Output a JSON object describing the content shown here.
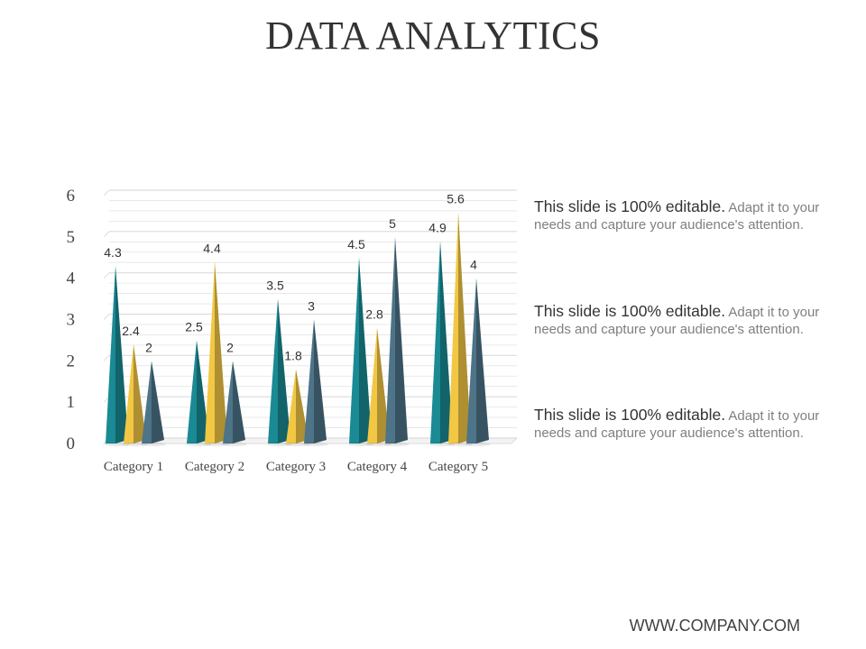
{
  "title": "DATA ANALYTICS",
  "notes": [
    {
      "lead": "This slide is 100% editable.",
      "body": " Adapt it to your needs and capture your audience's attention."
    },
    {
      "lead": "This slide is 100% editable.",
      "body": " Adapt it to your needs and capture your audience's attention."
    },
    {
      "lead": "This slide is 100% editable.",
      "body": " Adapt it to your needs and capture your audience's attention."
    }
  ],
  "footer": "WWW.COMPANY.COM",
  "colors": {
    "series_1": "#1a8a94",
    "series_2": "#f2c744",
    "series_3": "#4d7488",
    "grid": "#e4e4e4"
  },
  "chart_data": {
    "type": "bar",
    "style": "3d-cone",
    "categories": [
      "Category 1",
      "Category 2",
      "Category 3",
      "Category 4",
      "Category 5"
    ],
    "series": [
      {
        "values": [
          4.3,
          2.5,
          3.5,
          4.5,
          4.9
        ]
      },
      {
        "values": [
          2.4,
          4.4,
          1.8,
          2.8,
          5.6
        ]
      },
      {
        "values": [
          2,
          2,
          3,
          5,
          4
        ]
      }
    ],
    "ylim": [
      0,
      6
    ],
    "yticks": [
      "0",
      "1",
      "2",
      "3",
      "4",
      "5",
      "6"
    ],
    "grid": true,
    "legend": "none",
    "data_labels": true
  }
}
